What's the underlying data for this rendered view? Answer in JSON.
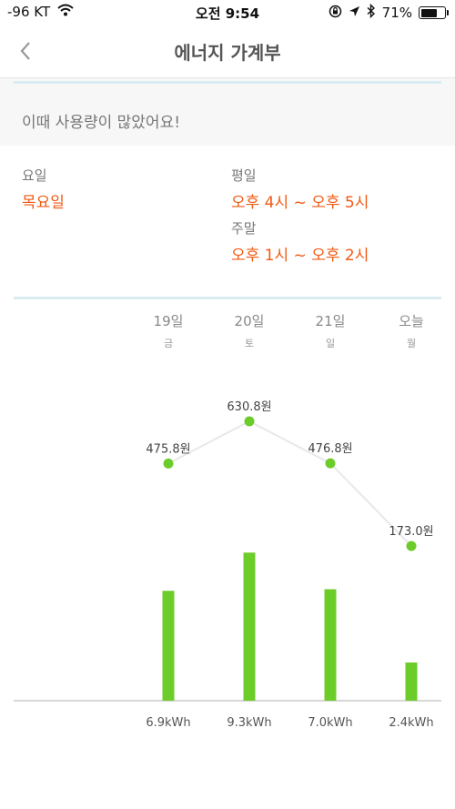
{
  "status": {
    "signal": "-96 KT",
    "time": "오전 9:54",
    "battery": "71%",
    "battery_level": 0.71
  },
  "nav": {
    "title": "에너지 가계부",
    "back_icon": "chevron-left-icon"
  },
  "notice": {
    "text": "이때 사용량이 많았어요!"
  },
  "info": {
    "day_label": "요일",
    "day_value": "목요일",
    "weekday_label": "평일",
    "weekday_value": "오후 4시 ~ 오후 5시",
    "weekend_label": "주말",
    "weekend_value": "오후 1시 ~ 오후 2시"
  },
  "days": [
    {
      "date": "19일",
      "weekday": "금"
    },
    {
      "date": "20일",
      "weekday": "토"
    },
    {
      "date": "21일",
      "weekday": "일"
    },
    {
      "date": "오늘",
      "weekday": "월"
    }
  ],
  "chart_data": {
    "type": "bar",
    "categories": [
      "19일",
      "20일",
      "21일",
      "오늘"
    ],
    "series": [
      {
        "values": [
          6.9,
          9.3,
          7.0,
          2.4
        ],
        "labels": [
          "6.9kWh",
          "9.3kWh",
          "7.0kWh",
          "2.4kWh"
        ]
      },
      {
        "values": [
          475.8,
          630.8,
          476.8,
          173.0
        ],
        "labels": [
          "475.8원",
          "630.8원",
          "476.8원",
          "173.0원"
        ]
      }
    ],
    "colors": {
      "bar": "#6ccc2a",
      "point": "#6ccc2a",
      "line": "#e8e8e8",
      "axis": "#cccccc"
    }
  }
}
